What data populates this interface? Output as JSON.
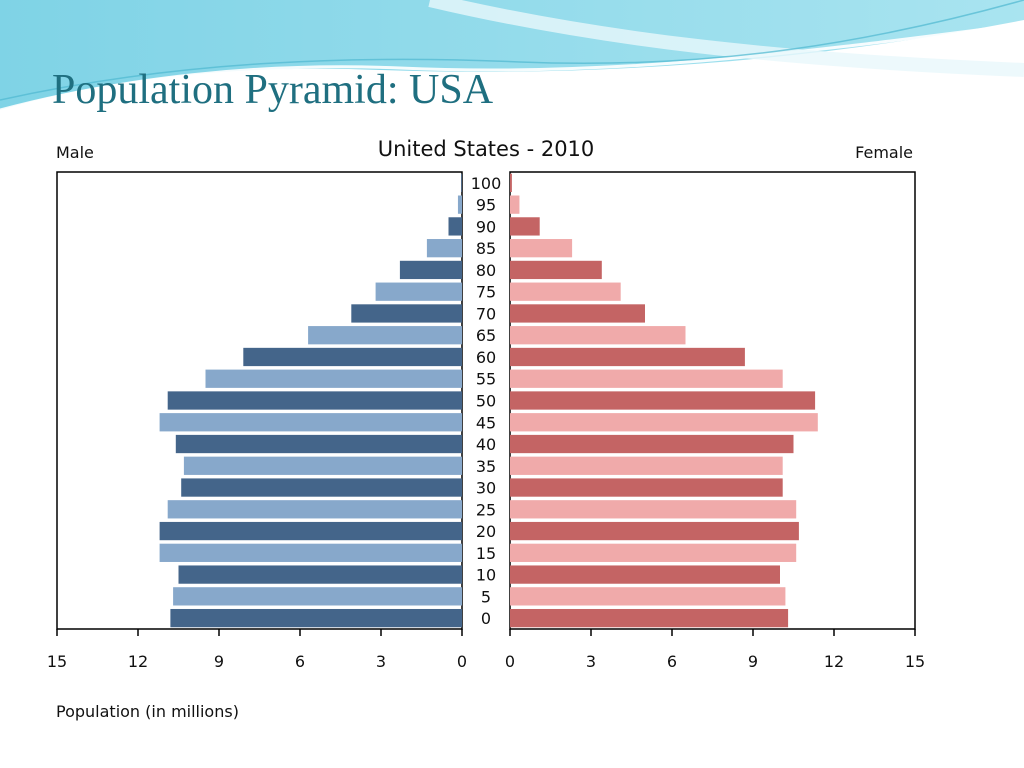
{
  "slide": {
    "title": "Population Pyramid: USA"
  },
  "chart_data": {
    "type": "bar",
    "title": "United States - 2010",
    "left_label": "Male",
    "right_label": "Female",
    "xlabel": "Population (in millions)",
    "xlim": [
      0,
      15
    ],
    "x_ticks": [
      "15",
      "12",
      "9",
      "6",
      "3",
      "0",
      "0",
      "3",
      "6",
      "9",
      "12",
      "15"
    ],
    "categories": [
      "0",
      "5",
      "10",
      "15",
      "20",
      "25",
      "30",
      "35",
      "40",
      "45",
      "50",
      "55",
      "60",
      "65",
      "70",
      "75",
      "80",
      "85",
      "90",
      "95",
      "100"
    ],
    "series": [
      {
        "name": "Male",
        "values": [
          10.8,
          10.7,
          10.5,
          11.2,
          11.2,
          10.9,
          10.4,
          10.3,
          10.6,
          11.2,
          10.9,
          9.5,
          8.1,
          5.7,
          4.1,
          3.2,
          2.3,
          1.3,
          0.5,
          0.15,
          0.03
        ]
      },
      {
        "name": "Female",
        "values": [
          10.3,
          10.2,
          10.0,
          10.6,
          10.7,
          10.6,
          10.1,
          10.1,
          10.5,
          11.4,
          11.3,
          10.1,
          8.7,
          6.5,
          5.0,
          4.1,
          3.4,
          2.3,
          1.1,
          0.35,
          0.07
        ]
      }
    ],
    "colors": {
      "male_dark": "#44658a",
      "male_light": "#87a8cb",
      "female_dark": "#c46464",
      "female_light": "#f0aaaa",
      "title_color": "#1f6f80"
    },
    "grid": false
  }
}
